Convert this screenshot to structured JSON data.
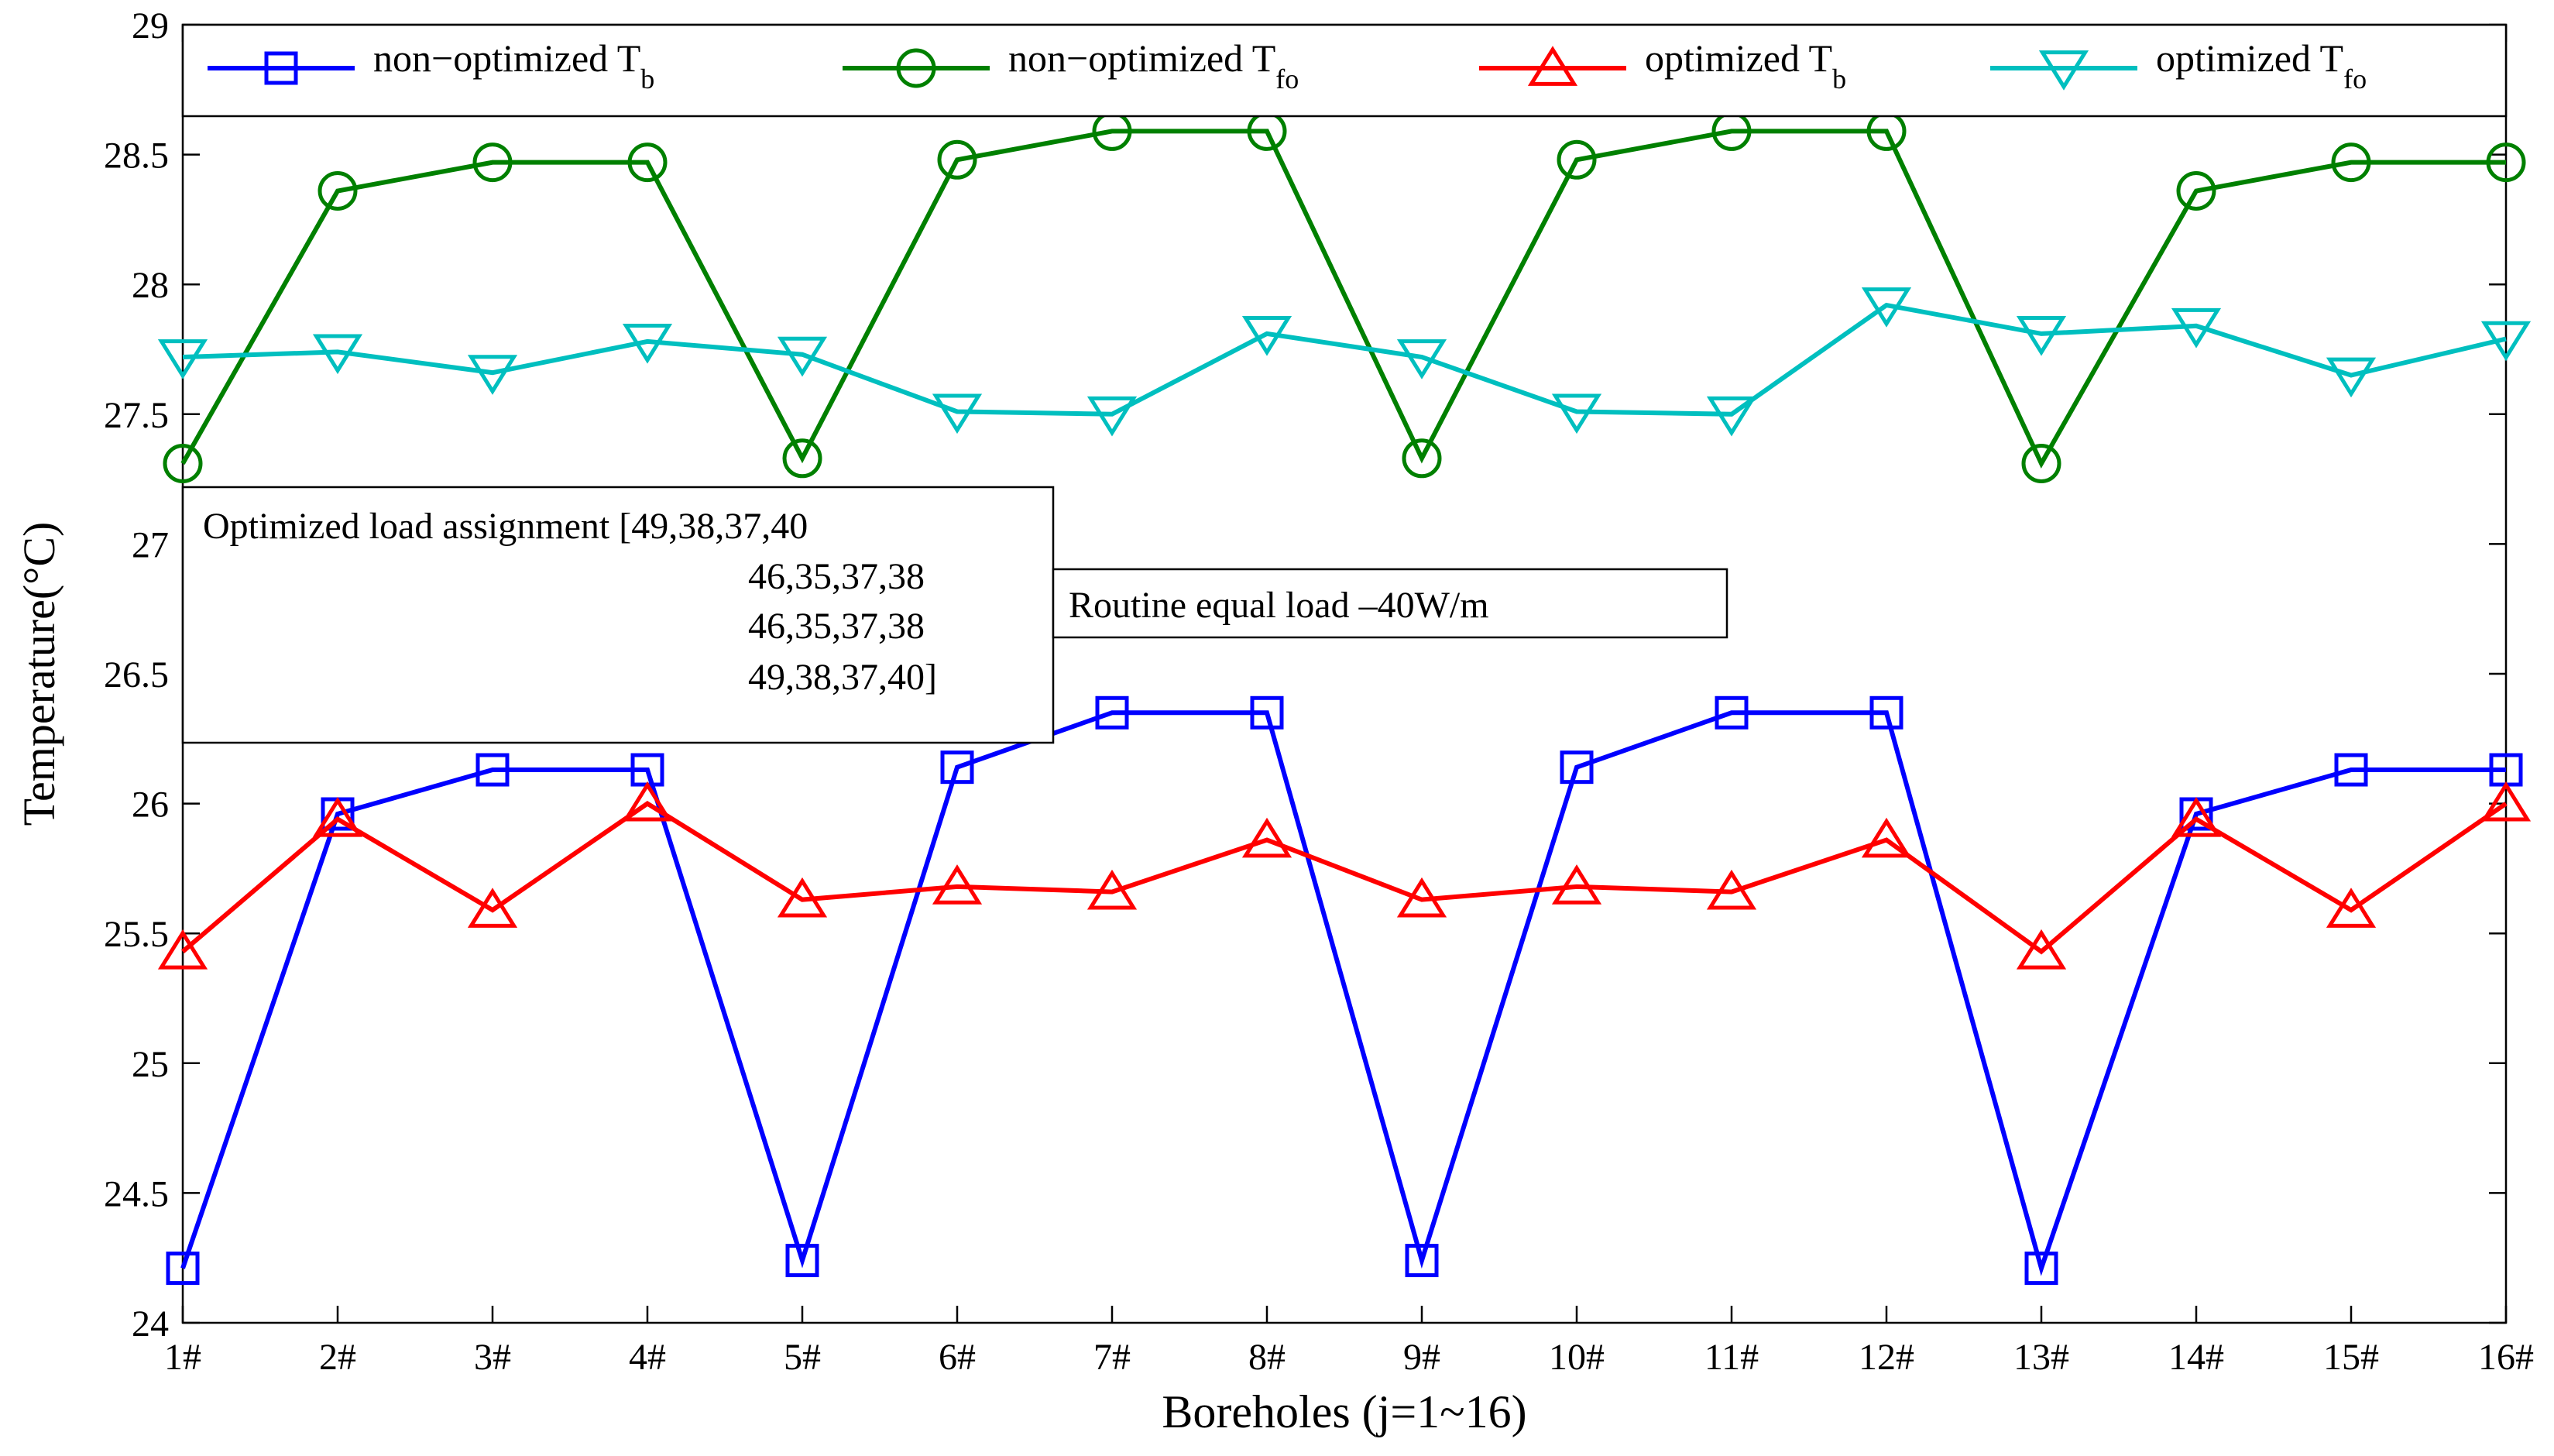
{
  "chart_data": {
    "type": "line",
    "title": "",
    "xlabel": "Boreholes (j=1~16)",
    "ylabel": "Temperature(°C)",
    "ylim": [
      24,
      29
    ],
    "yticks": [
      "24",
      "24.5",
      "25",
      "25.5",
      "26",
      "26.5",
      "27",
      "27.5",
      "28",
      "28.5",
      "29"
    ],
    "categories": [
      "1#",
      "2#",
      "3#",
      "4#",
      "5#",
      "6#",
      "7#",
      "8#",
      "9#",
      "10#",
      "11#",
      "12#",
      "13#",
      "14#",
      "15#",
      "16#"
    ],
    "grid": false,
    "legend_position": "top",
    "series": [
      {
        "name": "non−optimized T_b",
        "label_main": "non−optimized T",
        "label_sub": "b",
        "color": "#0000ff",
        "marker": "square",
        "values": [
          24.21,
          25.96,
          26.13,
          26.13,
          24.24,
          26.14,
          26.35,
          26.35,
          24.24,
          26.14,
          26.35,
          26.35,
          24.21,
          25.96,
          26.13,
          26.13
        ]
      },
      {
        "name": "non−optimized T_fo",
        "label_main": "non−optimized T",
        "label_sub": "fo",
        "color": "#008000",
        "marker": "circle",
        "values": [
          27.31,
          28.36,
          28.47,
          28.47,
          27.33,
          28.48,
          28.59,
          28.59,
          27.33,
          28.48,
          28.59,
          28.59,
          27.31,
          28.36,
          28.47,
          28.47
        ]
      },
      {
        "name": "optimized T_b",
        "label_main": "optimized T",
        "label_sub": "b",
        "color": "#ff0000",
        "marker": "triangle-up",
        "values": [
          25.43,
          25.94,
          25.59,
          26.0,
          25.63,
          25.68,
          25.66,
          25.86,
          25.63,
          25.68,
          25.66,
          25.86,
          25.43,
          25.94,
          25.59,
          26.0
        ]
      },
      {
        "name": "optimized T_fo",
        "label_main": "optimized T",
        "label_sub": "fo",
        "color": "#00bfbf",
        "marker": "triangle-down",
        "values": [
          27.72,
          27.74,
          27.66,
          27.78,
          27.73,
          27.51,
          27.5,
          27.81,
          27.72,
          27.51,
          27.5,
          27.92,
          27.81,
          27.84,
          27.65,
          27.79
        ]
      }
    ],
    "annotations": [
      {
        "id": "optimized",
        "lines": [
          "Optimized load assignment [49,38,37,40",
          "46,35,37,38",
          "46,35,37,38",
          "49,38,37,40]"
        ]
      },
      {
        "id": "routine",
        "lines": [
          "Routine equal load –40W/m"
        ]
      }
    ]
  }
}
